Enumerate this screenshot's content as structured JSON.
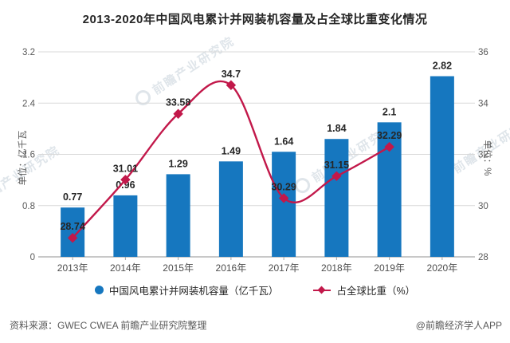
{
  "title": "2013-2020年中国风电累计并网装机容量及占全球比重变化情况",
  "chart_data": {
    "type": "bar+line",
    "categories": [
      "2013年",
      "2014年",
      "2015年",
      "2016年",
      "2017年",
      "2018年",
      "2019年",
      "2020年"
    ],
    "series": [
      {
        "name": "中国风电累计并网装机容量（亿千瓦）",
        "type": "bar",
        "axis": "left",
        "color": "#1677bf",
        "values": [
          0.77,
          0.96,
          1.29,
          1.49,
          1.64,
          1.84,
          2.1,
          2.82
        ]
      },
      {
        "name": "占全球比重（%）",
        "type": "line",
        "axis": "right",
        "color": "#c2184a",
        "values": [
          28.74,
          31.01,
          33.58,
          34.7,
          30.29,
          31.15,
          32.29,
          null
        ]
      }
    ],
    "left_axis": {
      "label": "单位：亿千瓦",
      "min": 0,
      "max": 3.2,
      "ticks": [
        0,
        0.8,
        1.6,
        2.4,
        3.2
      ]
    },
    "right_axis": {
      "label": "单位：%",
      "min": 28,
      "max": 36,
      "ticks": [
        28,
        30,
        32,
        34,
        36
      ]
    },
    "grid": true,
    "legend_position": "bottom"
  },
  "legend": {
    "bar_label": "中国风电累计并网装机容量（亿千瓦）",
    "line_label": "占全球比重（%）"
  },
  "footer": {
    "source": "资料来源：GWEC CWEA 前瞻产业研究院整理",
    "credit": "@前瞻经济学人APP"
  },
  "watermark": {
    "text": "前瞻产业研究院"
  },
  "colors": {
    "bar": "#1677bf",
    "line": "#c2184a",
    "grid": "#d9d9d9",
    "axis": "#a6a6a6",
    "data_label": "#262626",
    "tick_label": "#595959"
  }
}
